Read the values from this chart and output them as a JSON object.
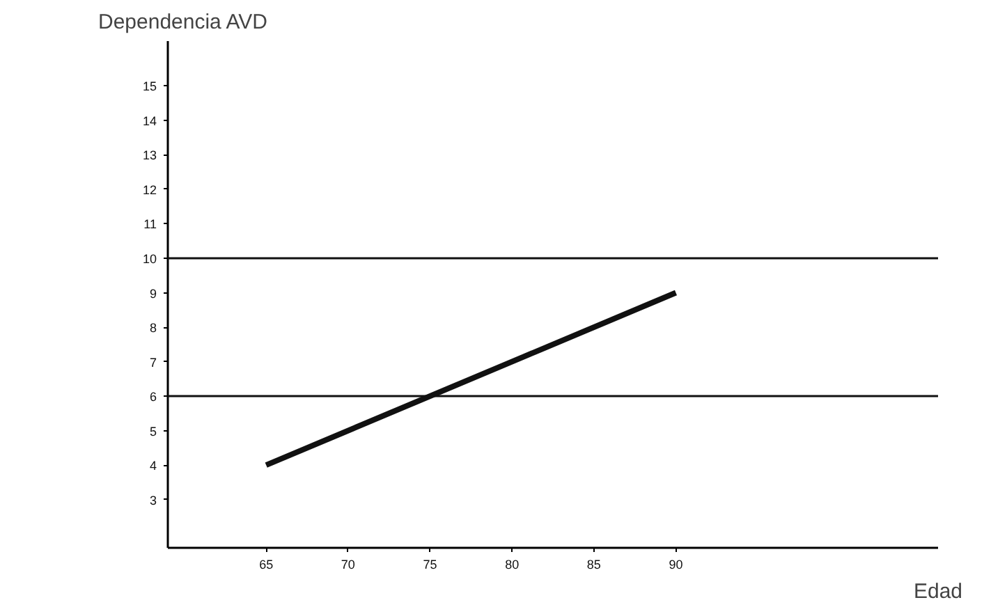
{
  "chart_data": {
    "type": "line",
    "ylabel": "Dependencia AVD",
    "xlabel": "Edad",
    "x": [
      65,
      90
    ],
    "series": [
      {
        "color": "#111111",
        "values": [
          4,
          9
        ]
      }
    ],
    "xlim": [
      59,
      106
    ],
    "ylim": [
      1.6,
      16.3
    ],
    "xticks": [
      65,
      70,
      75,
      80,
      85,
      90
    ],
    "yticks": [
      3,
      4,
      5,
      6,
      7,
      8,
      9,
      10,
      11,
      12,
      13,
      14,
      15
    ],
    "ref_lines": [
      {
        "axis": "y",
        "value": 10,
        "color": "#111111"
      },
      {
        "axis": "y",
        "value": 6,
        "color": "#111111"
      }
    ],
    "grid": false,
    "marker": "none",
    "line_style": "solid"
  }
}
